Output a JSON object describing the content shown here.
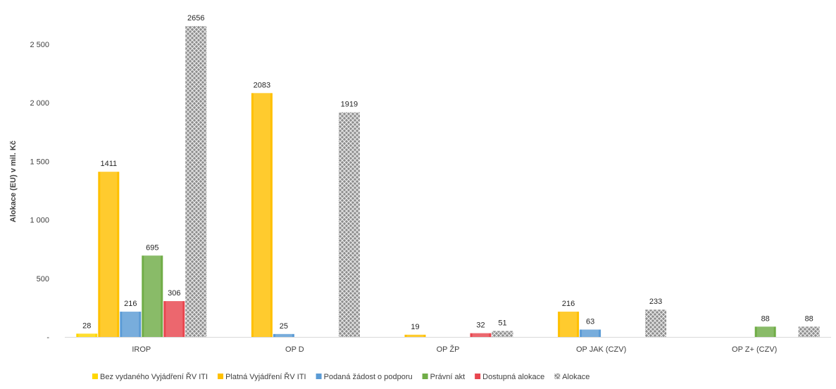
{
  "chart_data": {
    "type": "bar",
    "title": "",
    "xlabel": "",
    "ylabel": "Alokace (EU) v mil. Kč",
    "ylim": [
      0,
      2700
    ],
    "yticks": [
      0,
      500,
      1000,
      1500,
      2000,
      2500
    ],
    "ytick_labels": [
      "-",
      "500",
      "1 000",
      "1 500",
      "2 000",
      "2 500"
    ],
    "grid": false,
    "legend_position": "bottom",
    "categories": [
      "IROP",
      "OP D",
      "OP ŽP",
      "OP JAK (CZV)",
      "OP Z+ (CZV)"
    ],
    "series": [
      {
        "name": "Bez vydaného Vyjádření ŘV ITI",
        "color": "#FFD700",
        "values": [
          28,
          null,
          null,
          null,
          null
        ]
      },
      {
        "name": "Platná Vyjádření ŘV ITI",
        "color": "#FFC000",
        "values": [
          1411,
          2083,
          19,
          216,
          null
        ]
      },
      {
        "name": "Podaná žádost o podporu",
        "color": "#5B9BD5",
        "values": [
          216,
          25,
          null,
          63,
          null
        ]
      },
      {
        "name": "Právní akt",
        "color": "#70AD47",
        "values": [
          695,
          null,
          null,
          null,
          88
        ]
      },
      {
        "name": "Dostupná alokace",
        "color": "#E8464F",
        "values": [
          306,
          null,
          32,
          null,
          null
        ]
      },
      {
        "name": "Alokace",
        "color": "#A6A6A6",
        "pattern": "crosshatch",
        "values": [
          2656,
          1919,
          51,
          233,
          88
        ]
      }
    ],
    "data_labels": [
      [
        "28",
        null,
        null,
        null,
        null
      ],
      [
        "1411",
        "2083",
        "19",
        "216",
        null
      ],
      [
        "216",
        "25",
        null,
        "63",
        null
      ],
      [
        "695",
        null,
        null,
        null,
        "88"
      ],
      [
        "306",
        null,
        "32",
        null,
        null
      ],
      [
        "2656",
        "1919",
        "51",
        "233",
        "88"
      ]
    ]
  }
}
